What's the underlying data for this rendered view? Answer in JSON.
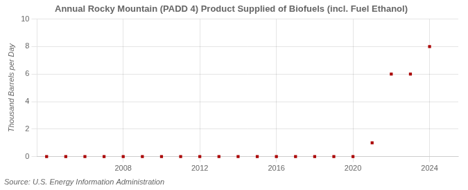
{
  "chart_data": {
    "type": "scatter",
    "title": "Annual Rocky Mountain (PADD 4) Product Supplied of Biofuels (incl. Fuel Ethanol)",
    "ylabel": "Thousand Barrels per Day",
    "source": "Source: U.S. Energy Information Administration",
    "x": [
      2004,
      2005,
      2006,
      2007,
      2008,
      2009,
      2010,
      2011,
      2012,
      2013,
      2014,
      2015,
      2016,
      2017,
      2018,
      2019,
      2020,
      2021,
      2022,
      2023,
      2024
    ],
    "values": [
      0,
      0,
      0,
      0,
      0,
      0,
      0,
      0,
      0,
      0,
      0,
      0,
      0,
      0,
      0,
      0,
      0,
      1,
      6,
      6,
      8
    ],
    "color": "#aa0000",
    "marker": "square",
    "xlim": [
      2003.5,
      2025.5
    ],
    "xticks": [
      2008,
      2012,
      2016,
      2020,
      2024
    ],
    "ylim": [
      0,
      10
    ],
    "yticks": [
      0,
      2,
      4,
      6,
      8,
      10
    ],
    "grid": true
  }
}
